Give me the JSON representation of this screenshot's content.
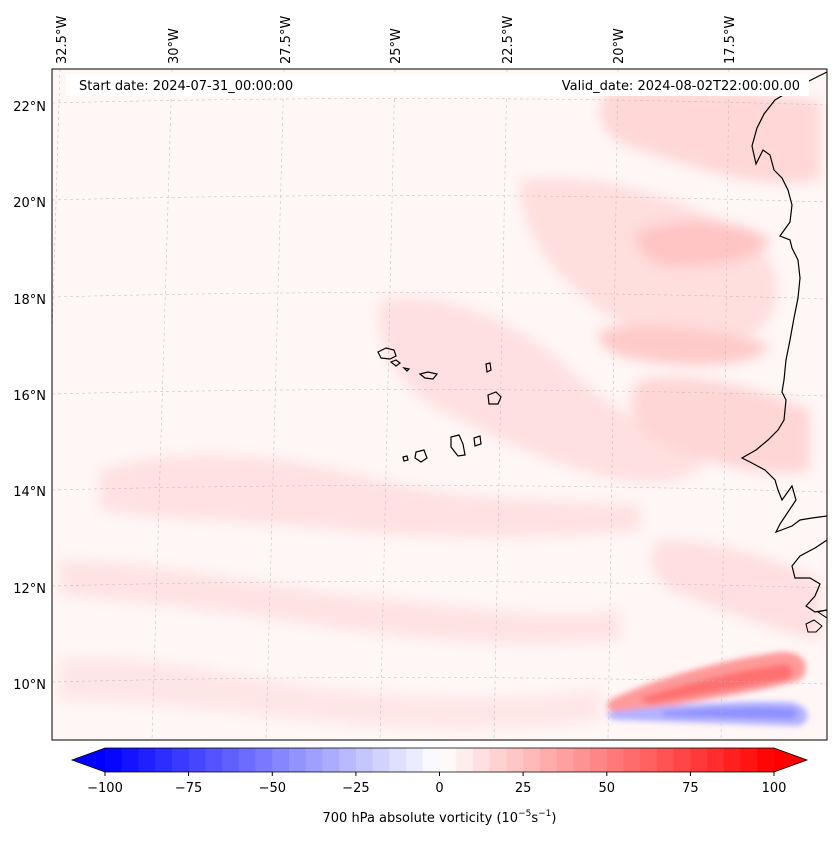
{
  "header": {
    "start_date": "Start date: 2024-07-31_00:00:00",
    "valid_date": "Valid_date: 2024-08-02T22:00:00.00"
  },
  "longitude_labels": [
    "32.5°W",
    "30°W",
    "27.5°W",
    "25°W",
    "22.5°W",
    "20°W",
    "17.5°W"
  ],
  "latitude_labels": [
    "22°N",
    "20°N",
    "18°N",
    "16°N",
    "14°N",
    "12°N",
    "10°N"
  ],
  "colorbar": {
    "label_prefix": "700 hPa absolute vorticity (10",
    "sup1": "−5",
    "mid": "s",
    "sup2": "−1",
    "label_suffix": ")",
    "ticks": [
      "−100",
      "−75",
      "−50",
      "−25",
      "0",
      "25",
      "50",
      "75",
      "100"
    ],
    "colormap": "bwr",
    "min_color": "#0000ff",
    "max_color": "#ff0000"
  },
  "map": {
    "variable": "700 hPa absolute vorticity",
    "region": "Eastern tropical Atlantic / Cabo Verde / West Africa coast",
    "background_color": "#fff6f6"
  }
}
